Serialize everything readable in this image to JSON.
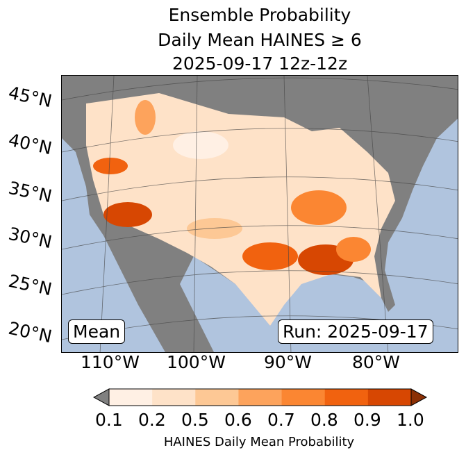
{
  "title": {
    "line1": "Ensemble Probability",
    "line2": "Daily Mean HAINES ≥ 6",
    "line3": "2025-09-17 12z-12z"
  },
  "lat_labels": [
    "45°N",
    "40°N",
    "35°N",
    "30°N",
    "25°N",
    "20°N"
  ],
  "lon_labels": [
    "110°W",
    "100°W",
    "90°W",
    "80°W"
  ],
  "mean_label": "Mean",
  "run_label": "Run: 2025-09-17",
  "colorbar": {
    "ticks": [
      "0.1",
      "0.2",
      "0.5",
      "0.6",
      "0.7",
      "0.8",
      "0.9",
      "1.0"
    ],
    "label": "HAINES Daily Mean Probability",
    "colors": [
      "#fff0e4",
      "#fee2c8",
      "#fdc895",
      "#fda35c",
      "#fb8632",
      "#f1620f",
      "#d74702"
    ],
    "under": "#808080",
    "over": "#8b3005"
  },
  "colors": {
    "ocean": "#b0c4de",
    "below_threshold": "#808080"
  }
}
